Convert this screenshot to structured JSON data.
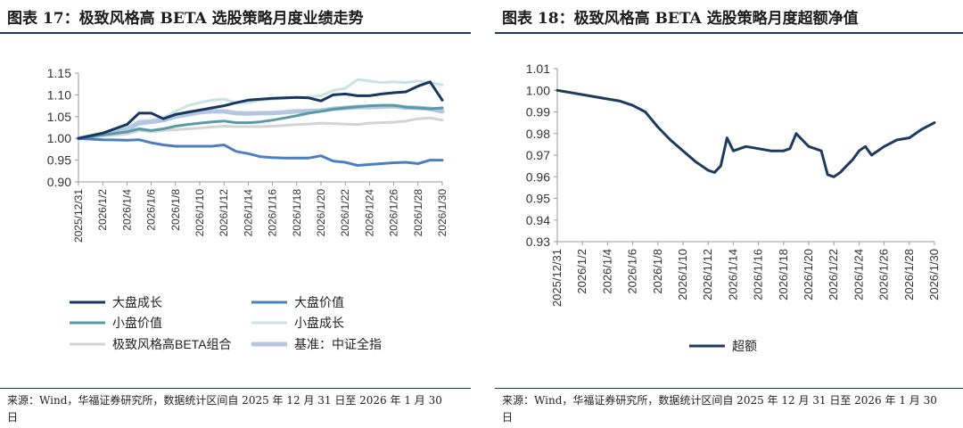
{
  "left": {
    "title": "图表 17：极致风格高 BETA 选股策略月度业绩走势",
    "source": "来源：Wind，华福证券研究所，数据统计区间自 2025 年 12 月 31 日至 2026 年 1 月 30 日"
  },
  "right": {
    "title": "图表 18：极致风格高 BETA 选股策略月度超额净值",
    "source": "来源：Wind，华福证券研究所，数据统计区间自 2025 年 12 月 31 日至 2026 年 1 月 30 日"
  },
  "chart_data": [
    {
      "type": "line",
      "title": "极致风格高 BETA 选股策略月度业绩走势",
      "xlabel": "",
      "ylabel": "",
      "ylim": [
        0.9,
        1.15
      ],
      "yticks": [
        "0.90",
        "0.95",
        "1.00",
        "1.05",
        "1.10",
        "1.15"
      ],
      "xticks": [
        "2025/12/31",
        "2026/1/2",
        "2026/1/4",
        "2026/1/6",
        "2026/1/8",
        "2026/1/10",
        "2026/1/12",
        "2026/1/14",
        "2026/1/16",
        "2026/1/18",
        "2026/1/20",
        "2026/1/22",
        "2026/1/24",
        "2026/1/26",
        "2026/1/28",
        "2026/1/30"
      ],
      "x": [
        0,
        2,
        4,
        5,
        6,
        7,
        8,
        9,
        10,
        11,
        12,
        13,
        14,
        15,
        16,
        17,
        18,
        19,
        20,
        21,
        22,
        23,
        24,
        25,
        26,
        27,
        28,
        29,
        30
      ],
      "series": [
        {
          "name": "大盘成长",
          "color": "#17375e",
          "width": 3,
          "values": [
            1.0,
            1.012,
            1.032,
            1.058,
            1.058,
            1.045,
            1.055,
            1.06,
            1.065,
            1.07,
            1.075,
            1.082,
            1.088,
            1.09,
            1.092,
            1.093,
            1.094,
            1.093,
            1.086,
            1.1,
            1.102,
            1.098,
            1.098,
            1.102,
            1.105,
            1.107,
            1.12,
            1.13,
            1.088
          ]
        },
        {
          "name": "大盘价值",
          "color": "#4a7fc1",
          "width": 3,
          "values": [
            1.0,
            0.997,
            0.996,
            0.997,
            0.99,
            0.985,
            0.982,
            0.982,
            0.982,
            0.982,
            0.985,
            0.97,
            0.965,
            0.958,
            0.956,
            0.955,
            0.955,
            0.955,
            0.96,
            0.948,
            0.945,
            0.938,
            0.94,
            0.942,
            0.944,
            0.945,
            0.942,
            0.95,
            0.95
          ]
        },
        {
          "name": "小盘价值",
          "color": "#5a9aa8",
          "width": 3,
          "values": [
            1.0,
            1.008,
            1.015,
            1.022,
            1.018,
            1.022,
            1.028,
            1.032,
            1.035,
            1.038,
            1.04,
            1.036,
            1.036,
            1.038,
            1.042,
            1.047,
            1.052,
            1.058,
            1.062,
            1.067,
            1.07,
            1.073,
            1.075,
            1.076,
            1.076,
            1.072,
            1.07,
            1.068,
            1.07
          ]
        },
        {
          "name": "小盘成长",
          "color": "#c9e3e3",
          "width": 3,
          "values": [
            1.0,
            1.01,
            1.025,
            1.04,
            1.042,
            1.048,
            1.062,
            1.075,
            1.082,
            1.088,
            1.09,
            1.082,
            1.082,
            1.088,
            1.09,
            1.092,
            1.094,
            1.095,
            1.098,
            1.11,
            1.115,
            1.135,
            1.132,
            1.128,
            1.13,
            1.128,
            1.132,
            1.128,
            1.123
          ]
        },
        {
          "name": "极致风格高BETA组合",
          "color": "#d4d4d4",
          "width": 3,
          "values": [
            1.0,
            1.005,
            1.01,
            1.018,
            1.015,
            1.018,
            1.02,
            1.022,
            1.024,
            1.026,
            1.028,
            1.027,
            1.027,
            1.027,
            1.028,
            1.03,
            1.032,
            1.033,
            1.035,
            1.034,
            1.033,
            1.032,
            1.035,
            1.036,
            1.037,
            1.04,
            1.045,
            1.047,
            1.042
          ]
        },
        {
          "name": "基准：中证全指",
          "color": "#b7c6e0",
          "width": 5,
          "values": [
            1.0,
            1.01,
            1.02,
            1.035,
            1.038,
            1.042,
            1.05,
            1.055,
            1.06,
            1.062,
            1.062,
            1.058,
            1.057,
            1.058,
            1.058,
            1.06,
            1.062,
            1.063,
            1.064,
            1.068,
            1.07,
            1.072,
            1.072,
            1.073,
            1.074,
            1.071,
            1.07,
            1.068,
            1.062
          ]
        }
      ],
      "legend": [
        {
          "label": "大盘成长",
          "color": "#17375e"
        },
        {
          "label": "大盘价值",
          "color": "#4a7fc1"
        },
        {
          "label": "小盘价值",
          "color": "#5a9aa8"
        },
        {
          "label": "小盘成长",
          "color": "#c9e3e3"
        },
        {
          "label": "极致风格高BETA组合",
          "color": "#d4d4d4"
        },
        {
          "label": "基准：中证全指",
          "color": "#b7c6e0"
        }
      ]
    },
    {
      "type": "line",
      "title": "极致风格高 BETA 选股策略月度超额净值",
      "xlabel": "",
      "ylabel": "",
      "ylim": [
        0.93,
        1.01
      ],
      "yticks": [
        "0.93",
        "0.94",
        "0.95",
        "0.96",
        "0.97",
        "0.98",
        "0.99",
        "1.00",
        "1.01"
      ],
      "xticks": [
        "2025/12/31",
        "2026/1/2",
        "2026/1/4",
        "2026/1/6",
        "2026/1/8",
        "2026/1/10",
        "2026/1/12",
        "2026/1/14",
        "2026/1/16",
        "2026/1/18",
        "2026/1/20",
        "2026/1/22",
        "2026/1/24",
        "2026/1/26",
        "2026/1/28",
        "2026/1/30"
      ],
      "x": [
        0,
        2,
        4,
        5,
        6,
        7,
        8,
        9,
        10,
        11,
        12,
        12.5,
        13,
        13.5,
        14,
        15,
        16,
        17,
        18,
        18.5,
        19,
        20,
        20.5,
        21,
        21.5,
        22,
        22.5,
        23,
        23.5,
        24,
        24.5,
        25,
        26,
        27,
        28,
        29,
        30
      ],
      "series": [
        {
          "name": "超额",
          "color": "#1f3a60",
          "width": 3,
          "values": [
            1.0,
            0.998,
            0.996,
            0.995,
            0.993,
            0.99,
            0.983,
            0.977,
            0.972,
            0.967,
            0.963,
            0.962,
            0.965,
            0.978,
            0.972,
            0.974,
            0.973,
            0.972,
            0.972,
            0.973,
            0.98,
            0.974,
            0.973,
            0.972,
            0.961,
            0.96,
            0.962,
            0.965,
            0.968,
            0.972,
            0.974,
            0.97,
            0.974,
            0.977,
            0.978,
            0.982,
            0.985
          ]
        }
      ],
      "legend": [
        {
          "label": "超额",
          "color": "#1f3a60"
        }
      ]
    }
  ]
}
